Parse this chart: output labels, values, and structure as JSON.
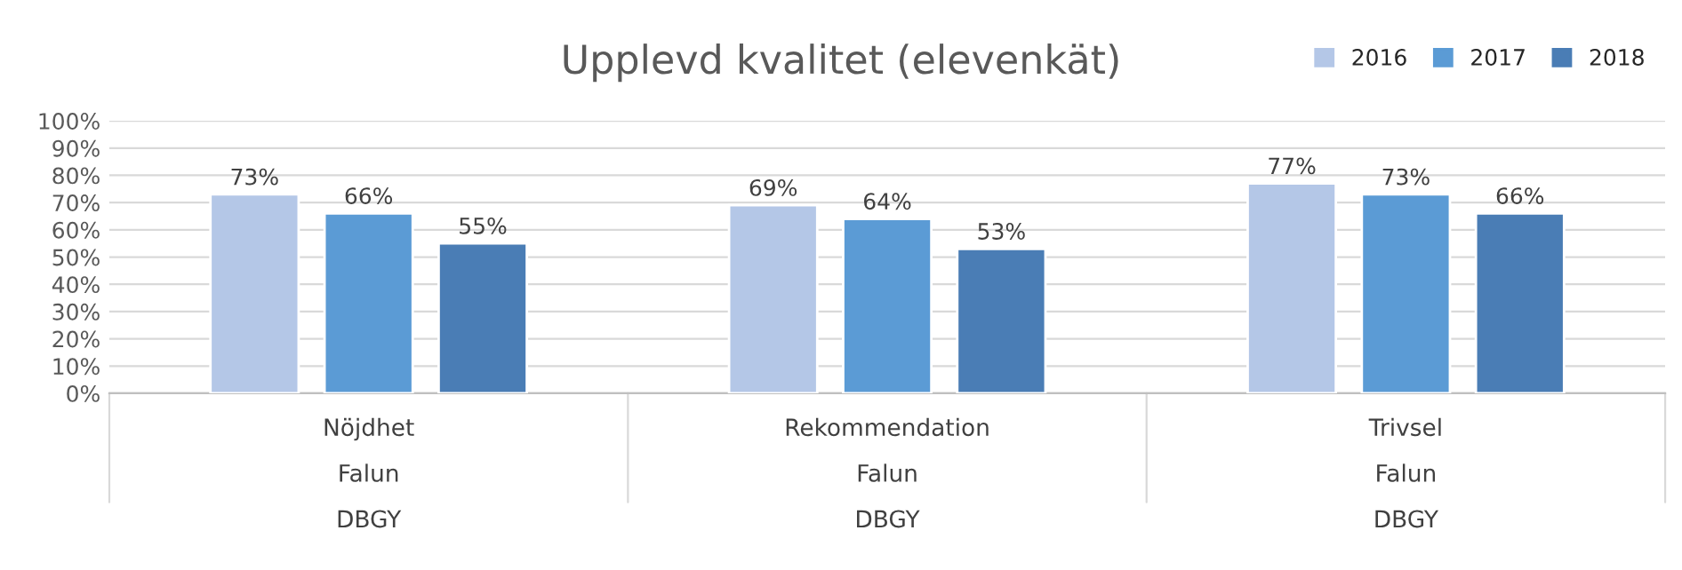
{
  "chart_data": {
    "type": "bar",
    "title": "Upplevd kvalitet (elevenkät)",
    "categories": [
      "Nöjdhet\nFalun\nDBGY",
      "Rekommendation\nFalun\nDBGY",
      "Trivsel\nFalun\nDBGY"
    ],
    "series": [
      {
        "name": "2016",
        "color": "#b4c7e7",
        "values": [
          73,
          69,
          77
        ],
        "value_labels": [
          "73%",
          "69%",
          "77%"
        ]
      },
      {
        "name": "2017",
        "color": "#5b9bd5",
        "values": [
          66,
          64,
          73
        ],
        "value_labels": [
          "66%",
          "64%",
          "73%"
        ]
      },
      {
        "name": "2018",
        "color": "#4a7db5",
        "values": [
          55,
          53,
          66
        ],
        "value_labels": [
          "55%",
          "53%",
          "66%"
        ]
      }
    ],
    "ylim": [
      0,
      100
    ],
    "yticks": [
      {
        "value": 0,
        "label": "0%"
      },
      {
        "value": 10,
        "label": "10%"
      },
      {
        "value": 20,
        "label": "20%"
      },
      {
        "value": 30,
        "label": "30%"
      },
      {
        "value": 40,
        "label": "40%"
      },
      {
        "value": 50,
        "label": "50%"
      },
      {
        "value": 60,
        "label": "60%"
      },
      {
        "value": 70,
        "label": "70%"
      },
      {
        "value": 80,
        "label": "80%"
      },
      {
        "value": 90,
        "label": "90%"
      },
      {
        "value": 100,
        "label": "100%"
      }
    ],
    "grid": "y",
    "legend": "top right"
  }
}
